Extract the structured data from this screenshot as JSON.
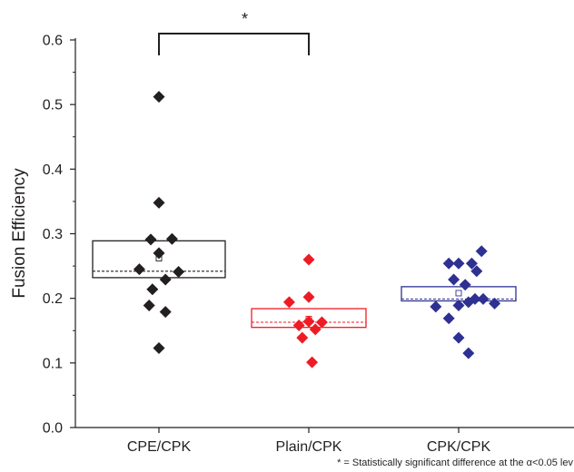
{
  "chart_data": {
    "type": "scatter",
    "subtype": "dot-plot-with-box",
    "title": "",
    "xlabel": "",
    "ylabel": "Fusion Efficiency",
    "ylim": [
      0.0,
      0.6
    ],
    "yticks": [
      "0.0",
      "0.1",
      "0.2",
      "0.3",
      "0.4",
      "0.5",
      "0.6"
    ],
    "grid": false,
    "legend": "none",
    "categories": [
      "CPE/CPK",
      "Plain/CPK",
      "CPK/CPK"
    ],
    "groups": [
      {
        "category": "CPE/CPK",
        "color": "#231f20",
        "points": [
          {
            "offset": 0.0,
            "value": 0.512
          },
          {
            "offset": 0.0,
            "value": 0.348
          },
          {
            "offset": -0.5,
            "value": 0.291
          },
          {
            "offset": 0.8,
            "value": 0.292
          },
          {
            "offset": 0.0,
            "value": 0.27
          },
          {
            "offset": -1.2,
            "value": 0.245
          },
          {
            "offset": 1.2,
            "value": 0.241
          },
          {
            "offset": 0.4,
            "value": 0.229
          },
          {
            "offset": -0.4,
            "value": 0.214
          },
          {
            "offset": -0.6,
            "value": 0.189
          },
          {
            "offset": 0.4,
            "value": 0.179
          },
          {
            "offset": 0.0,
            "value": 0.123
          }
        ],
        "box": {
          "q1": 0.232,
          "q3": 0.289,
          "median": 0.242,
          "mean": 0.262
        }
      },
      {
        "category": "Plain/CPK",
        "color": "#ed1c24",
        "points": [
          {
            "offset": -1.2,
            "value": 0.194
          },
          {
            "offset": 0.0,
            "value": 0.26
          },
          {
            "offset": 0.0,
            "value": 0.202
          },
          {
            "offset": 0.0,
            "value": 0.164
          },
          {
            "offset": -0.6,
            "value": 0.158
          },
          {
            "offset": 0.8,
            "value": 0.163
          },
          {
            "offset": 0.4,
            "value": 0.152
          },
          {
            "offset": -0.4,
            "value": 0.139
          },
          {
            "offset": 0.2,
            "value": 0.101
          }
        ],
        "box": {
          "q1": 0.155,
          "q3": 0.184,
          "median": 0.163,
          "mean": 0.168
        }
      },
      {
        "category": "CPK/CPK",
        "color": "#2e3192",
        "points": [
          {
            "offset": -0.6,
            "value": 0.254
          },
          {
            "offset": 0.0,
            "value": 0.254
          },
          {
            "offset": 0.8,
            "value": 0.254
          },
          {
            "offset": 1.4,
            "value": 0.273
          },
          {
            "offset": 1.1,
            "value": 0.242
          },
          {
            "offset": -0.3,
            "value": 0.229
          },
          {
            "offset": 0.4,
            "value": 0.221
          },
          {
            "offset": -1.4,
            "value": 0.187
          },
          {
            "offset": 0.0,
            "value": 0.189
          },
          {
            "offset": 0.6,
            "value": 0.194
          },
          {
            "offset": 1.0,
            "value": 0.199
          },
          {
            "offset": 1.5,
            "value": 0.199
          },
          {
            "offset": 2.2,
            "value": 0.192
          },
          {
            "offset": -0.6,
            "value": 0.169
          },
          {
            "offset": 0.0,
            "value": 0.139
          },
          {
            "offset": 0.6,
            "value": 0.115
          }
        ],
        "box": {
          "q1": 0.196,
          "q3": 0.218,
          "median": 0.199,
          "mean": 0.208
        }
      }
    ],
    "significance": {
      "from": "CPE/CPK",
      "to": "Plain/CPK",
      "marker": "*",
      "bracket_level": 0.6
    },
    "footnote": "* = Statistically significant difference at the α<0.05 lev"
  }
}
